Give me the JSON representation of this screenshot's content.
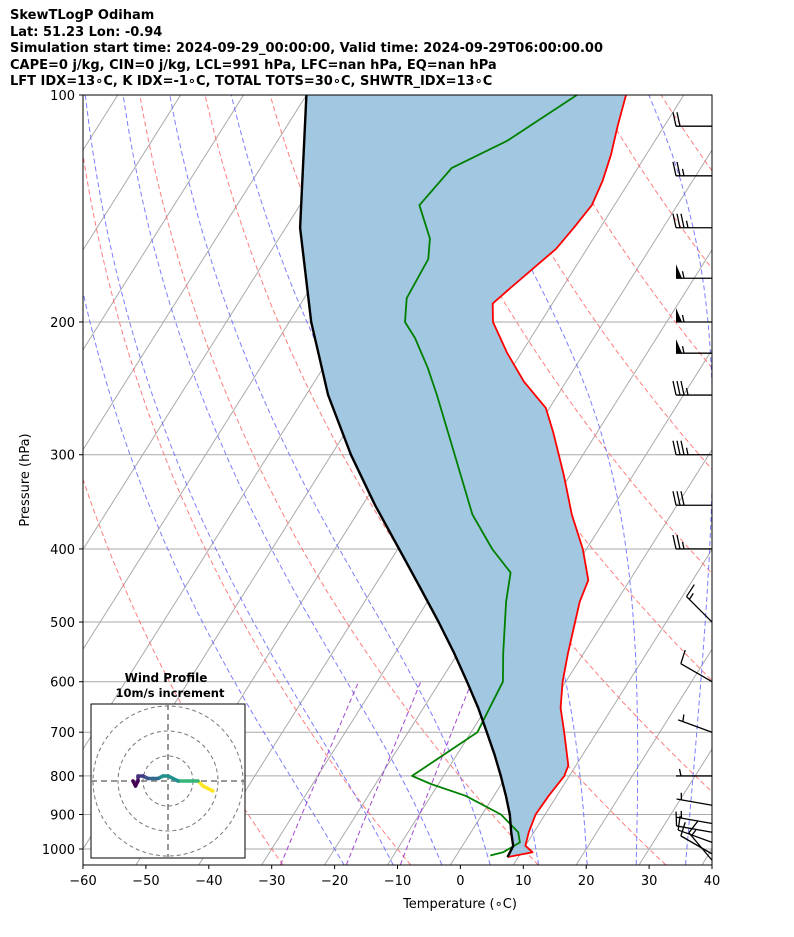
{
  "header": {
    "line1": "SkewTLogP Odiham",
    "line2": "Lat: 51.23   Lon: -0.94",
    "line3": "Simulation start time: 2024-09-29_00:00:00, Valid time: 2024-09-29T06:00:00.00",
    "line4": "CAPE=0 j/kg, CIN=0 j/kg, LCL=991 hPa, LFC=nan hPa, EQ=nan hPa",
    "line5": "LFT IDX=13∘C, K IDX=-1∘C, TOTAL TOTS=30∘C, SHWTR_IDX=13∘C"
  },
  "inset": {
    "title": "Wind Profile",
    "subtitle": "10m/s increment"
  },
  "colors": {
    "temperature": "#ff0000",
    "dewpoint": "#008000",
    "parcel": "#000000",
    "fill": "#a2c7e0",
    "dry_adiabat": "#ff6666",
    "moist_adiabat": "#6666ff",
    "mixing_ratio": "#9933cc",
    "isotherm": "#aaaaaa"
  },
  "chart_data": {
    "type": "line",
    "subtype": "skew-t log-p",
    "xlabel": "Temperature (∘C)",
    "ylabel": "Pressure (hPa)",
    "xlim": [
      -60,
      40
    ],
    "ylim": [
      1040,
      100
    ],
    "x_ticks": [
      "−60",
      "−50",
      "−40",
      "−30",
      "−20",
      "−10",
      "0",
      "10",
      "20",
      "30",
      "40"
    ],
    "y_ticks": [
      "1000",
      "900",
      "800",
      "700",
      "600",
      "500",
      "400",
      "300",
      "200",
      "100"
    ],
    "grid": true,
    "series": [
      {
        "key": "temperature",
        "points": [
          [
            1025,
            8.3
          ],
          [
            1010,
            11.8
          ],
          [
            990,
            10.0
          ],
          [
            950,
            9.2
          ],
          [
            900,
            8.5
          ],
          [
            850,
            8.7
          ],
          [
            800,
            9.2
          ],
          [
            775,
            8.8
          ],
          [
            700,
            4.8
          ],
          [
            650,
            1.8
          ],
          [
            600,
            -0.5
          ],
          [
            550,
            -2.5
          ],
          [
            500,
            -4.5
          ],
          [
            470,
            -5.8
          ],
          [
            440,
            -6.6
          ],
          [
            400,
            -10.6
          ],
          [
            360,
            -15.8
          ],
          [
            320,
            -20.9
          ],
          [
            280,
            -27.0
          ],
          [
            260,
            -30.6
          ],
          [
            240,
            -36.7
          ],
          [
            220,
            -42.2
          ],
          [
            200,
            -47.6
          ],
          [
            189,
            -49.5
          ],
          [
            180,
            -48.2
          ],
          [
            160,
            -44.9
          ],
          [
            150,
            -44.2
          ],
          [
            140,
            -43.6
          ],
          [
            130,
            -44.3
          ],
          [
            120,
            -45.6
          ],
          [
            110,
            -47.4
          ],
          [
            100,
            -49.2
          ]
        ]
      },
      {
        "key": "dewpoint",
        "points": [
          [
            1020,
            5.4
          ],
          [
            1010,
            7.1
          ],
          [
            980,
            8.8
          ],
          [
            950,
            7.5
          ],
          [
            900,
            3.0
          ],
          [
            850,
            -4.5
          ],
          [
            820,
            -11.2
          ],
          [
            800,
            -15.0
          ],
          [
            700,
            -9.0
          ],
          [
            600,
            -10.0
          ],
          [
            550,
            -12.8
          ],
          [
            470,
            -17.5
          ],
          [
            430,
            -19.7
          ],
          [
            400,
            -25.0
          ],
          [
            360,
            -31.6
          ],
          [
            300,
            -40.4
          ],
          [
            250,
            -49.2
          ],
          [
            230,
            -53.4
          ],
          [
            210,
            -58.4
          ],
          [
            200,
            -61.6
          ],
          [
            186,
            -63.7
          ],
          [
            165,
            -64.2
          ],
          [
            155,
            -66.0
          ],
          [
            140,
            -71.0
          ],
          [
            125,
            -69.6
          ],
          [
            115,
            -63.5
          ],
          [
            100,
            -57.0
          ]
        ]
      },
      {
        "key": "parcel",
        "points": [
          [
            1025,
            8.3
          ],
          [
            991,
            8.1
          ],
          [
            950,
            6.4
          ],
          [
            900,
            4.4
          ],
          [
            850,
            1.9
          ],
          [
            800,
            -0.9
          ],
          [
            750,
            -4.0
          ],
          [
            700,
            -7.5
          ],
          [
            650,
            -11.3
          ],
          [
            600,
            -15.7
          ],
          [
            550,
            -20.6
          ],
          [
            500,
            -26.2
          ],
          [
            450,
            -32.6
          ],
          [
            400,
            -39.8
          ],
          [
            350,
            -48.0
          ],
          [
            300,
            -56.9
          ],
          [
            250,
            -66.5
          ],
          [
            200,
            -76.5
          ],
          [
            150,
            -87.7
          ],
          [
            100,
            -100.0
          ]
        ]
      }
    ],
    "wind_barbs": [
      {
        "p": 1035,
        "speed_kt": 15,
        "dir_deg": 320
      },
      {
        "p": 1015,
        "speed_kt": 10,
        "dir_deg": 300
      },
      {
        "p": 980,
        "speed_kt": 10,
        "dir_deg": 290
      },
      {
        "p": 950,
        "speed_kt": 10,
        "dir_deg": 280
      },
      {
        "p": 925,
        "speed_kt": 5,
        "dir_deg": 280
      },
      {
        "p": 875,
        "speed_kt": 5,
        "dir_deg": 280
      },
      {
        "p": 800,
        "speed_kt": 5,
        "dir_deg": 270
      },
      {
        "p": 700,
        "speed_kt": 5,
        "dir_deg": 290
      },
      {
        "p": 600,
        "speed_kt": 10,
        "dir_deg": 300
      },
      {
        "p": 500,
        "speed_kt": 15,
        "dir_deg": 315
      },
      {
        "p": 400,
        "speed_kt": 25,
        "dir_deg": 270
      },
      {
        "p": 350,
        "speed_kt": 30,
        "dir_deg": 270
      },
      {
        "p": 300,
        "speed_kt": 35,
        "dir_deg": 270
      },
      {
        "p": 250,
        "speed_kt": 35,
        "dir_deg": 270
      },
      {
        "p": 220,
        "speed_kt": 55,
        "dir_deg": 270
      },
      {
        "p": 200,
        "speed_kt": 55,
        "dir_deg": 270
      },
      {
        "p": 175,
        "speed_kt": 55,
        "dir_deg": 270
      },
      {
        "p": 150,
        "speed_kt": 35,
        "dir_deg": 270
      },
      {
        "p": 128,
        "speed_kt": 25,
        "dir_deg": 270
      },
      {
        "p": 110,
        "speed_kt": 20,
        "dir_deg": 270
      }
    ],
    "hodograph": {
      "rings_ms": [
        10,
        20,
        30
      ],
      "points_uv": [
        [
          18,
          -4
        ],
        [
          14,
          -2
        ],
        [
          12,
          0
        ],
        [
          8,
          0
        ],
        [
          4,
          0
        ],
        [
          0,
          2
        ],
        [
          -2,
          2
        ],
        [
          -4,
          1
        ],
        [
          -6,
          1
        ],
        [
          -8,
          1
        ],
        [
          -10,
          2
        ],
        [
          -12,
          2
        ],
        [
          -12,
          0
        ],
        [
          -13,
          -2
        ],
        [
          -14,
          0
        ]
      ]
    }
  }
}
